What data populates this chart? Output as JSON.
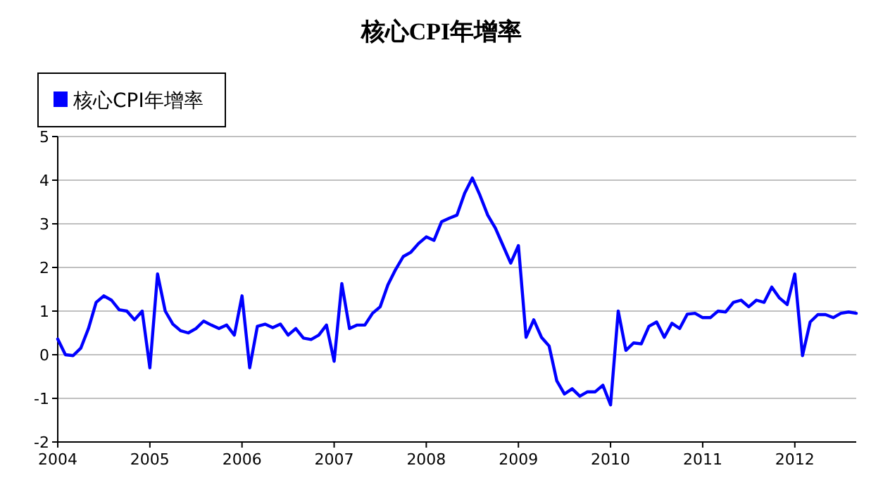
{
  "chart_data": {
    "type": "line",
    "title": "核心CPI年增率",
    "x": [
      "2004-01",
      "2004-02",
      "2004-03",
      "2004-04",
      "2004-05",
      "2004-06",
      "2004-07",
      "2004-08",
      "2004-09",
      "2004-10",
      "2004-11",
      "2004-12",
      "2005-01",
      "2005-02",
      "2005-03",
      "2005-04",
      "2005-05",
      "2005-06",
      "2005-07",
      "2005-08",
      "2005-09",
      "2005-10",
      "2005-11",
      "2005-12",
      "2006-01",
      "2006-02",
      "2006-03",
      "2006-04",
      "2006-05",
      "2006-06",
      "2006-07",
      "2006-08",
      "2006-09",
      "2006-10",
      "2006-11",
      "2006-12",
      "2007-01",
      "2007-02",
      "2007-03",
      "2007-04",
      "2007-05",
      "2007-06",
      "2007-07",
      "2007-08",
      "2007-09",
      "2007-10",
      "2007-11",
      "2007-12",
      "2008-01",
      "2008-02",
      "2008-03",
      "2008-04",
      "2008-05",
      "2008-06",
      "2008-07",
      "2008-08",
      "2008-09",
      "2008-10",
      "2008-11",
      "2008-12",
      "2009-01",
      "2009-02",
      "2009-03",
      "2009-04",
      "2009-05",
      "2009-06",
      "2009-07",
      "2009-08",
      "2009-09",
      "2009-10",
      "2009-11",
      "2009-12",
      "2010-01",
      "2010-02",
      "2010-03",
      "2010-04",
      "2010-05",
      "2010-06",
      "2010-07",
      "2010-08",
      "2010-09",
      "2010-10",
      "2010-11",
      "2010-12",
      "2011-01",
      "2011-02",
      "2011-03",
      "2011-04",
      "2011-05",
      "2011-06",
      "2011-07",
      "2011-08",
      "2011-09",
      "2011-10",
      "2011-11",
      "2011-12",
      "2012-01",
      "2012-02",
      "2012-03",
      "2012-04",
      "2012-05",
      "2012-06",
      "2012-07",
      "2012-08",
      "2012-09"
    ],
    "series": [
      {
        "name": "核心CPI年增率",
        "color": "#0000ff",
        "values": [
          0.36,
          0.0,
          -0.02,
          0.15,
          0.6,
          1.2,
          1.35,
          1.25,
          1.03,
          1.0,
          0.8,
          1.0,
          -0.3,
          1.85,
          1.0,
          0.7,
          0.55,
          0.5,
          0.6,
          0.77,
          0.68,
          0.6,
          0.68,
          0.45,
          1.35,
          -0.3,
          0.65,
          0.7,
          0.62,
          0.7,
          0.45,
          0.6,
          0.38,
          0.35,
          0.45,
          0.68,
          -0.15,
          1.63,
          0.6,
          0.68,
          0.68,
          0.95,
          1.1,
          1.6,
          1.95,
          2.25,
          2.35,
          2.55,
          2.7,
          2.62,
          3.05,
          3.13,
          3.2,
          3.7,
          4.05,
          3.65,
          3.2,
          2.9,
          2.5,
          2.1,
          2.5,
          0.4,
          0.8,
          0.4,
          0.2,
          -0.6,
          -0.9,
          -0.78,
          -0.95,
          -0.85,
          -0.85,
          -0.7,
          -1.15,
          1.0,
          0.1,
          0.27,
          0.25,
          0.65,
          0.75,
          0.4,
          0.72,
          0.6,
          0.93,
          0.95,
          0.85,
          0.85,
          1.0,
          0.98,
          1.2,
          1.25,
          1.1,
          1.25,
          1.2,
          1.55,
          1.3,
          1.15,
          1.85,
          -0.02,
          0.75,
          0.92,
          0.92,
          0.85,
          0.95,
          0.98,
          0.95
        ]
      }
    ],
    "xlim": [
      "2004-01",
      "2012-09"
    ],
    "xticks": [
      {
        "value": "2004-01",
        "label": "2004"
      },
      {
        "value": "2005-01",
        "label": "2005"
      },
      {
        "value": "2006-01",
        "label": "2006"
      },
      {
        "value": "2007-01",
        "label": "2007"
      },
      {
        "value": "2008-01",
        "label": "2008"
      },
      {
        "value": "2009-01",
        "label": "2009"
      },
      {
        "value": "2010-01",
        "label": "2010"
      },
      {
        "value": "2011-01",
        "label": "2011"
      },
      {
        "value": "2012-01",
        "label": "2012"
      }
    ],
    "ylim": [
      -2,
      5
    ],
    "yticks": [
      -2,
      -1,
      0,
      1,
      2,
      3,
      4,
      5
    ],
    "grid": "y",
    "legend": "top left",
    "line_style": "solid"
  }
}
